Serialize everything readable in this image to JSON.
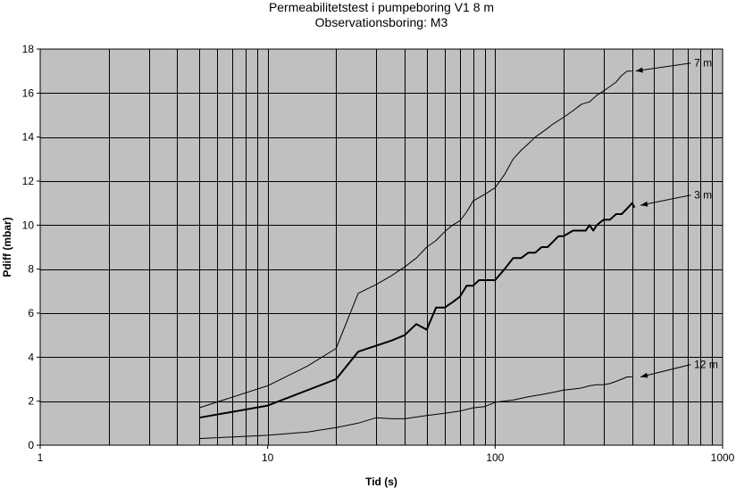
{
  "chart_data": {
    "type": "line",
    "title": "Permeabilitetstest i pumpeboring V1 8 m",
    "subtitle": "Observationsboring: M3",
    "xlabel": "Tid (s)",
    "ylabel": "Pdiff (mbar)",
    "x_scale": "log",
    "xlim": [
      1,
      1000
    ],
    "ylim": [
      0,
      18
    ],
    "x_tick_labels": [
      "1",
      "10",
      "100",
      "1000"
    ],
    "y_ticks": [
      0,
      2,
      4,
      6,
      8,
      10,
      12,
      14,
      16,
      18
    ],
    "grid": true,
    "legend": "none",
    "colors": {
      "plot_bg": "#c0c0c0",
      "grid": "#000000",
      "line": "#000000"
    },
    "series": [
      {
        "name": "7 m",
        "stroke_width": 1,
        "x": [
          5,
          10,
          15,
          20,
          25,
          30,
          35,
          40,
          45,
          50,
          55,
          60,
          65,
          70,
          75,
          80,
          90,
          100,
          110,
          120,
          130,
          140,
          150,
          160,
          170,
          180,
          200,
          220,
          240,
          260,
          280,
          300,
          320,
          340,
          360,
          380,
          400
        ],
        "y": [
          1.7,
          2.7,
          3.6,
          4.4,
          6.9,
          7.3,
          7.7,
          8.1,
          8.5,
          9.0,
          9.3,
          9.7,
          10.0,
          10.2,
          10.6,
          11.1,
          11.4,
          11.7,
          12.3,
          13.0,
          13.4,
          13.7,
          14.0,
          14.2,
          14.4,
          14.6,
          14.9,
          15.2,
          15.5,
          15.6,
          15.9,
          16.1,
          16.3,
          16.5,
          16.8,
          17.0,
          17.0
        ]
      },
      {
        "name": "3 m",
        "stroke_width": 2,
        "x": [
          5,
          10,
          20,
          25,
          35,
          40,
          45,
          50,
          55,
          60,
          65,
          70,
          75,
          80,
          85,
          90,
          100,
          110,
          120,
          130,
          140,
          150,
          160,
          170,
          180,
          190,
          200,
          220,
          250,
          260,
          270,
          280,
          300,
          320,
          340,
          360,
          380,
          400,
          410
        ],
        "y": [
          1.25,
          1.8,
          3.0,
          4.25,
          4.75,
          5.0,
          5.5,
          5.25,
          6.25,
          6.25,
          6.5,
          6.75,
          7.25,
          7.25,
          7.5,
          7.5,
          7.5,
          8.0,
          8.5,
          8.5,
          8.75,
          8.75,
          9.0,
          9.0,
          9.25,
          9.5,
          9.5,
          9.75,
          9.75,
          10.0,
          9.75,
          10.0,
          10.25,
          10.25,
          10.5,
          10.5,
          10.75,
          11.0,
          10.8
        ]
      },
      {
        "name": "12 m",
        "stroke_width": 1,
        "x": [
          5,
          10,
          15,
          20,
          25,
          30,
          35,
          40,
          50,
          60,
          70,
          80,
          90,
          100,
          120,
          140,
          160,
          180,
          200,
          220,
          240,
          260,
          280,
          300,
          320,
          340,
          360,
          380,
          400
        ],
        "y": [
          0.3,
          0.45,
          0.6,
          0.8,
          1.0,
          1.25,
          1.2,
          1.2,
          1.35,
          1.45,
          1.55,
          1.7,
          1.75,
          1.95,
          2.05,
          2.2,
          2.3,
          2.4,
          2.5,
          2.55,
          2.6,
          2.7,
          2.75,
          2.75,
          2.8,
          2.9,
          3.0,
          3.1,
          3.1
        ]
      }
    ],
    "annotations": [
      {
        "text": "7 m",
        "target_x": 400,
        "target_y": 17.0,
        "label_x": 750,
        "label_y": 17.2
      },
      {
        "text": "3 m",
        "target_x": 420,
        "target_y": 10.9,
        "label_x": 750,
        "label_y": 11.2
      },
      {
        "text": "12 m",
        "target_x": 420,
        "target_y": 3.1,
        "label_x": 750,
        "label_y": 3.5
      }
    ]
  }
}
